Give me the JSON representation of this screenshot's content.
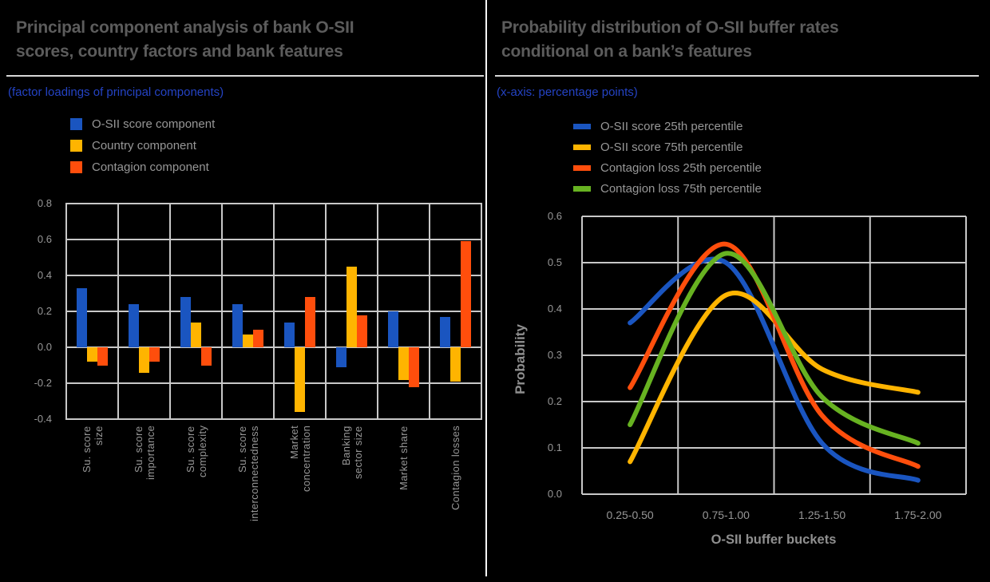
{
  "page": {
    "background": "#000000",
    "divider_color": "#F5F5F5",
    "grid_color": "#C8C8C8"
  },
  "left_panel": {
    "title": "Principal component analysis of bank O-SII\nscores, country factors and bank features",
    "subtitle": "(factor loadings of principal components)"
  },
  "right_panel": {
    "title": "Probability distribution of O-SII buffer rates\nconditional on a bank’s features",
    "subtitle": "(x-axis: percentage points)"
  },
  "chart_data": [
    {
      "panel": "left",
      "type": "bar",
      "title": "Principal component analysis of bank O-SII scores, country factors and bank features",
      "note": "(factor loadings of principal components)",
      "categories": [
        "Su. score\nsize",
        "Su. score\nimportance",
        "Su. score\ncomplexity",
        "Su. score\ninterconnectedness",
        "Market\nconcentration",
        "Banking\nsector size",
        "Market share",
        "Contagion losses"
      ],
      "series": [
        {
          "name": "O-SII score component",
          "color": "#1A55C0",
          "values": [
            0.33,
            0.24,
            0.28,
            0.24,
            0.14,
            -0.11,
            0.2,
            0.17
          ]
        },
        {
          "name": "Country component",
          "color": "#FFB400",
          "values": [
            -0.08,
            -0.14,
            0.14,
            0.07,
            -0.36,
            0.45,
            -0.18,
            -0.19
          ]
        },
        {
          "name": "Contagion component",
          "color": "#FF4E0C",
          "values": [
            -0.1,
            -0.08,
            -0.1,
            0.1,
            0.28,
            0.18,
            -0.22,
            0.59
          ]
        }
      ],
      "xlabel": "",
      "ylabel": "",
      "ylim": [
        -0.4,
        0.8
      ],
      "ytick_step": 0.2,
      "yticks": [
        "0.8",
        "0.6",
        "0.4",
        "0.2",
        "0.0",
        "-0.2",
        "-0.4"
      ],
      "grid": true,
      "legend_position": "top-left"
    },
    {
      "panel": "right",
      "type": "line",
      "title": "Probability distribution of O-SII buffer rates conditional on a bank’s features",
      "note": "(x-axis: percentage points)",
      "categories": [
        "0.25-0.50",
        "0.75-1.00",
        "1.25-1.50",
        "1.75-2.00"
      ],
      "series": [
        {
          "name": "O-SII score 25th percentile",
          "color": "#1A55C0",
          "values": [
            0.37,
            0.5,
            0.11,
            0.03
          ]
        },
        {
          "name": "O-SII score 75th percentile",
          "color": "#FFB400",
          "values": [
            0.07,
            0.43,
            0.27,
            0.22
          ]
        },
        {
          "name": "Contagion loss 25th percentile",
          "color": "#FF4E0C",
          "values": [
            0.23,
            0.54,
            0.17,
            0.06
          ]
        },
        {
          "name": "Contagion loss 75th percentile",
          "color": "#67B221",
          "values": [
            0.15,
            0.52,
            0.21,
            0.11
          ]
        }
      ],
      "xlabel": "O-SII buffer buckets",
      "ylabel": "Probability",
      "ylim": [
        0,
        0.6
      ],
      "ytick_step": 0.1,
      "yticks": [
        "0.6",
        "0.5",
        "0.4",
        "0.3",
        "0.2",
        "0.1",
        "0.0"
      ],
      "grid": true,
      "legend_position": "top"
    }
  ]
}
